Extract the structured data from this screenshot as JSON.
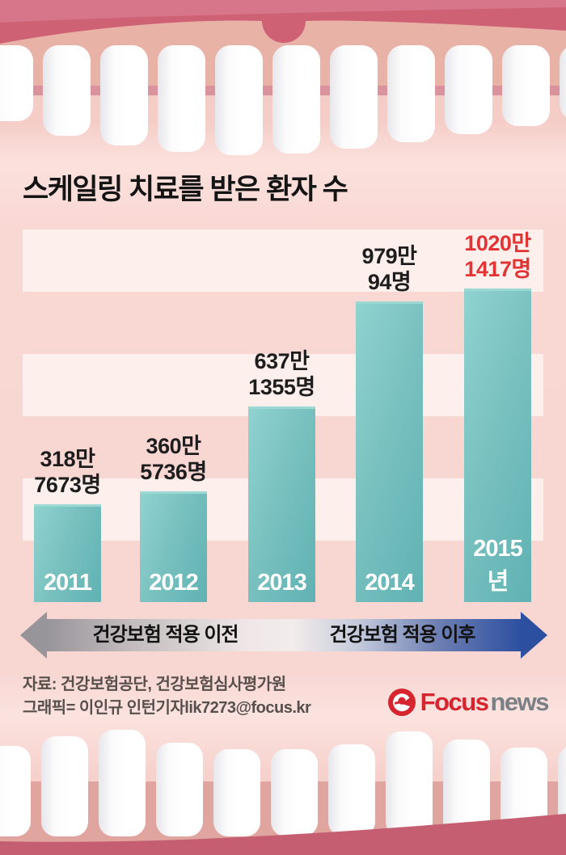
{
  "title": "스케일링 치료를 받은 환자 수",
  "chart_data": {
    "type": "bar",
    "title": "스케일링 치료를 받은 환자 수",
    "categories": [
      "2011",
      "2012",
      "2013",
      "2014",
      "2015년"
    ],
    "values": [
      3187673,
      3605736,
      6371355,
      9790094,
      10201417
    ],
    "value_labels": [
      [
        "318만",
        "7673명"
      ],
      [
        "360만",
        "5736명"
      ],
      [
        "637만",
        "1355명"
      ],
      [
        "979만",
        "94명"
      ],
      [
        "1020만",
        "1417명"
      ]
    ],
    "highlight_index": 4,
    "unit": "명",
    "xlabel": "",
    "ylabel": "",
    "ylim": [
      0,
      10201417
    ],
    "grid": "horizontal-stripes",
    "legend": "none",
    "bar_color": "#74bfbe",
    "label_color": "#1d1d1d",
    "highlight_label_color": "#e23434"
  },
  "timeline": {
    "before_label": "건강보험 적용 이전",
    "after_label": "건강보험 적용 이후",
    "before_color": "#97949a",
    "after_color": "#2c4fa0"
  },
  "footer": {
    "source_line": "자료: 건강보험공단, 건강보험심사평가원",
    "credit_line": "그래픽= 이인규 인턴기자lik7273@focus.kr",
    "logo": {
      "icon": "focus-swirl-icon",
      "brand_primary": "Focus",
      "brand_secondary": "news",
      "primary_color": "#d6252f",
      "secondary_color": "#7b8086"
    }
  },
  "palette": {
    "page_pink": "#f8d6d2",
    "stripe_light": "#fdefec",
    "gum": "#e9b2a7",
    "lip_red": "#ce6174",
    "tooth_white": "#ffffff"
  }
}
